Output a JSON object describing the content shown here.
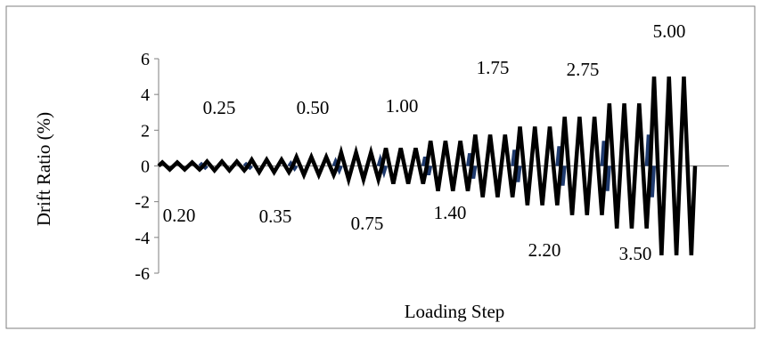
{
  "chart_data": {
    "type": "line",
    "title": "",
    "xlabel": "Loading Step",
    "ylabel": "Drift Ratio (%)",
    "ylim": [
      -6,
      6
    ],
    "yticks": [
      6,
      4,
      2,
      0,
      -2,
      -4,
      -6
    ],
    "grid": false,
    "legend": "none",
    "colors": {
      "cycles": "#000000",
      "small_cycles": "#1f3a6e",
      "frame": "#7f7f7f"
    },
    "steps": [
      {
        "label": "0.20",
        "amplitude": 0.2,
        "cycles": 3
      },
      {
        "label": "0.25",
        "amplitude": 0.25,
        "cycles": 3
      },
      {
        "label": "0.35",
        "amplitude": 0.35,
        "cycles": 3
      },
      {
        "label": "0.50",
        "amplitude": 0.5,
        "cycles": 3
      },
      {
        "label": "0.75",
        "amplitude": 0.75,
        "cycles": 3
      },
      {
        "label": "1.00",
        "amplitude": 1.0,
        "cycles": 3
      },
      {
        "label": "1.40",
        "amplitude": 1.4,
        "cycles": 3
      },
      {
        "label": "1.75",
        "amplitude": 1.75,
        "cycles": 3
      },
      {
        "label": "2.20",
        "amplitude": 2.2,
        "cycles": 3
      },
      {
        "label": "2.75",
        "amplitude": 2.75,
        "cycles": 3
      },
      {
        "label": "3.50",
        "amplitude": 3.5,
        "cycles": 3
      },
      {
        "label": "5.00",
        "amplitude": 5.0,
        "cycles": 3
      }
    ]
  }
}
